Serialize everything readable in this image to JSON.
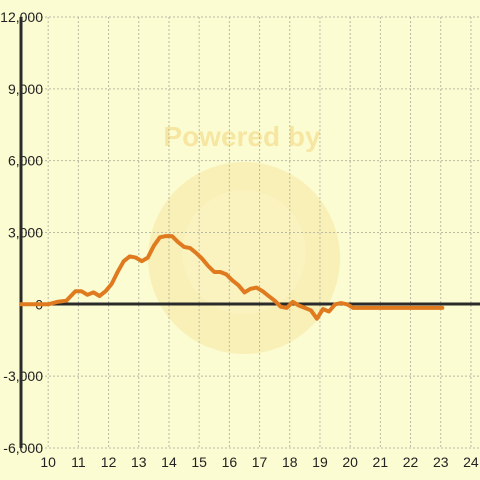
{
  "chart_data": {
    "type": "line",
    "title": "",
    "xlabel": "",
    "ylabel": "",
    "xlim": [
      9.1,
      24.3
    ],
    "ylim": [
      -6000,
      12000
    ],
    "x_ticks": [
      "10",
      "11",
      "12",
      "13",
      "14",
      "15",
      "16",
      "17",
      "18",
      "19",
      "20",
      "21",
      "22",
      "23",
      "24"
    ],
    "y_ticks": [
      "12,000",
      "9,000",
      "6,000",
      "3,000",
      "0",
      "-3,000",
      "-6,000"
    ],
    "grid": true,
    "watermark": "Powered by",
    "colors": {
      "background": "#fcfcd3",
      "line": "#e07a1f",
      "watermark": "#f6e6a2"
    },
    "series": [
      {
        "x": [
          9.1,
          9.5,
          10.0,
          10.3,
          10.6,
          10.9,
          11.1,
          11.3,
          11.5,
          11.7,
          11.9,
          12.1,
          12.3,
          12.5,
          12.7,
          12.9,
          13.1,
          13.3,
          13.5,
          13.7,
          13.9,
          14.1,
          14.3,
          14.5,
          14.7,
          14.9,
          15.1,
          15.3,
          15.5,
          15.7,
          15.9,
          16.1,
          16.3,
          16.5,
          16.7,
          16.9,
          17.1,
          17.3,
          17.5,
          17.7,
          17.9,
          18.1,
          18.3,
          18.5,
          18.7,
          18.9,
          19.1,
          19.3,
          19.5,
          19.7,
          19.9,
          20.1,
          20.3,
          20.5,
          20.7,
          20.85,
          21.0,
          21.1,
          21.3,
          21.5,
          21.7,
          21.9,
          22.1,
          22.3,
          22.5,
          22.7,
          22.9,
          23.05
        ],
        "y": [
          0,
          0,
          0,
          100,
          150,
          550,
          550,
          400,
          500,
          350,
          550,
          850,
          1350,
          1800,
          2000,
          1950,
          1800,
          1950,
          2450,
          2800,
          2850,
          2850,
          2600,
          2400,
          2350,
          2150,
          1900,
          1600,
          1350,
          1350,
          1250,
          1000,
          800,
          500,
          650,
          700,
          550,
          350,
          150,
          -100,
          -150,
          100,
          -50,
          -150,
          -250,
          -600,
          -200,
          -300,
          0,
          50,
          0,
          -150,
          -150,
          -150,
          -150,
          -150,
          -150,
          -150,
          -150,
          -150,
          -150,
          -150,
          -150,
          -150,
          -150,
          -150,
          -150,
          -150
        ]
      }
    ]
  }
}
